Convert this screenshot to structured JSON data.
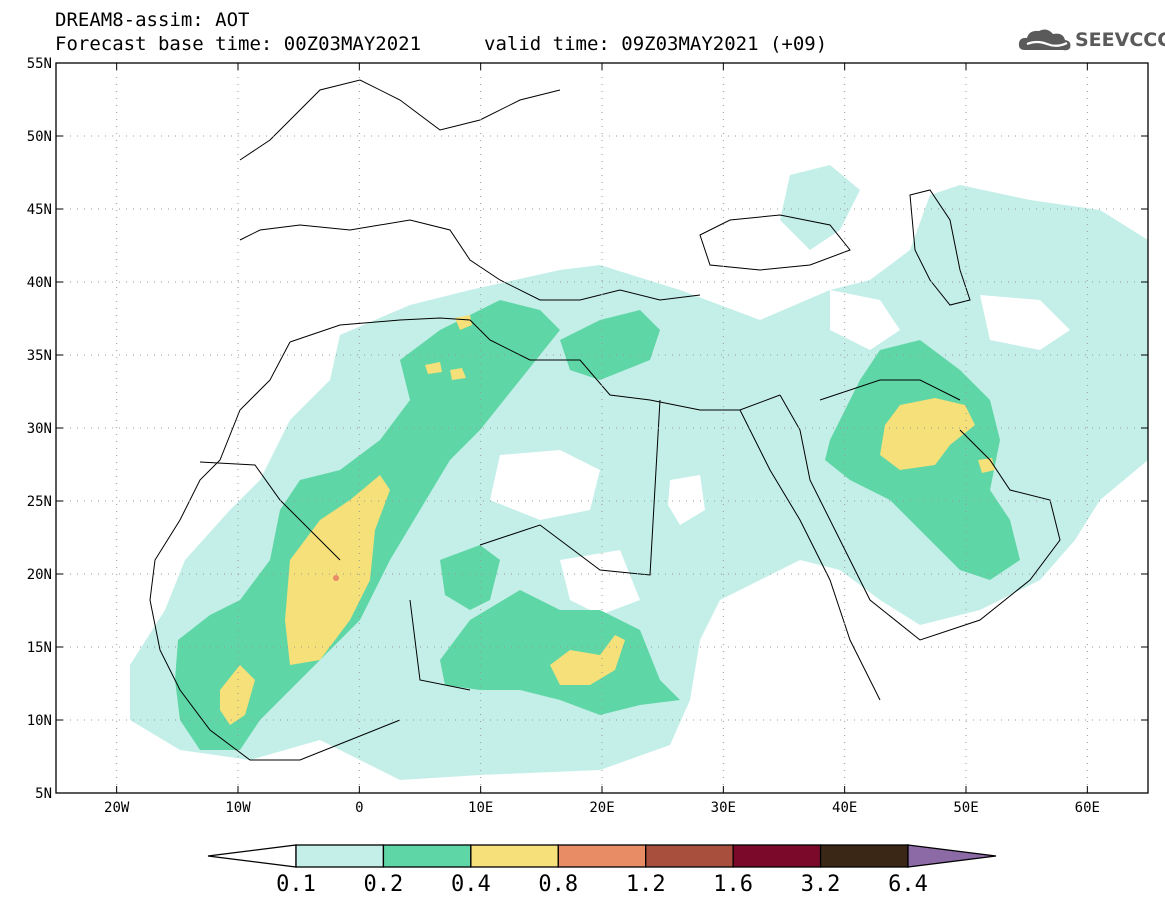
{
  "header": {
    "title": "DREAM8-assim: AOT",
    "base_time": "Forecast base time: 00Z03MAY2021",
    "valid_time": "valid time: 09Z03MAY2021 (+09)",
    "logo_text": "SEEVCCC"
  },
  "map": {
    "projection": "lat-lon",
    "lon_range": [
      -25,
      65
    ],
    "lat_range": [
      5,
      55
    ],
    "lat_labels": [
      "55N",
      "50N",
      "45N",
      "40N",
      "35N",
      "30N",
      "25N",
      "20N",
      "15N",
      "10N",
      "5N"
    ],
    "lon_labels": [
      "20W",
      "10W",
      "0",
      "10E",
      "20E",
      "30E",
      "40E",
      "50E",
      "60E"
    ],
    "grid": "dotted",
    "fill_colors": {
      "c1": "#c3efe8",
      "c2": "#5fd6a6",
      "c3": "#f5e07a",
      "c4": "#e88c65"
    }
  },
  "colorbar": {
    "labels": [
      "0.1",
      "0.2",
      "0.4",
      "0.8",
      "1.2",
      "1.6",
      "3.2",
      "6.4"
    ],
    "colors": [
      "#ffffff",
      "#c3efe8",
      "#5fd6a6",
      "#f5e07a",
      "#e88c65",
      "#a84f3e",
      "#7b0a2a",
      "#3b2716",
      "#8b6aa5"
    ]
  }
}
